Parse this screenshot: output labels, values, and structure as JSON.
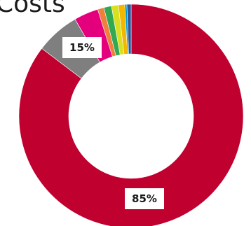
{
  "chart_data": {
    "type": "pie",
    "title": "Costs",
    "slices": [
      {
        "value": 85.0,
        "color": "#c0002f",
        "label": "85%"
      },
      {
        "value": 6.3,
        "color": "#7f7f7f",
        "label": "15%"
      },
      {
        "value": 3.5,
        "color": "#e4007c",
        "label": ""
      },
      {
        "value": 0.9,
        "color": "#f07f3c",
        "label": ""
      },
      {
        "value": 1.1,
        "color": "#33a852",
        "label": ""
      },
      {
        "value": 1.0,
        "color": "#d9e021",
        "label": ""
      },
      {
        "value": 0.9,
        "color": "#f3b700",
        "label": ""
      },
      {
        "value": 0.3,
        "color": "#0099d8",
        "label": ""
      },
      {
        "value": 0.6,
        "color": "#2f5597",
        "label": ""
      }
    ],
    "legend": false
  }
}
